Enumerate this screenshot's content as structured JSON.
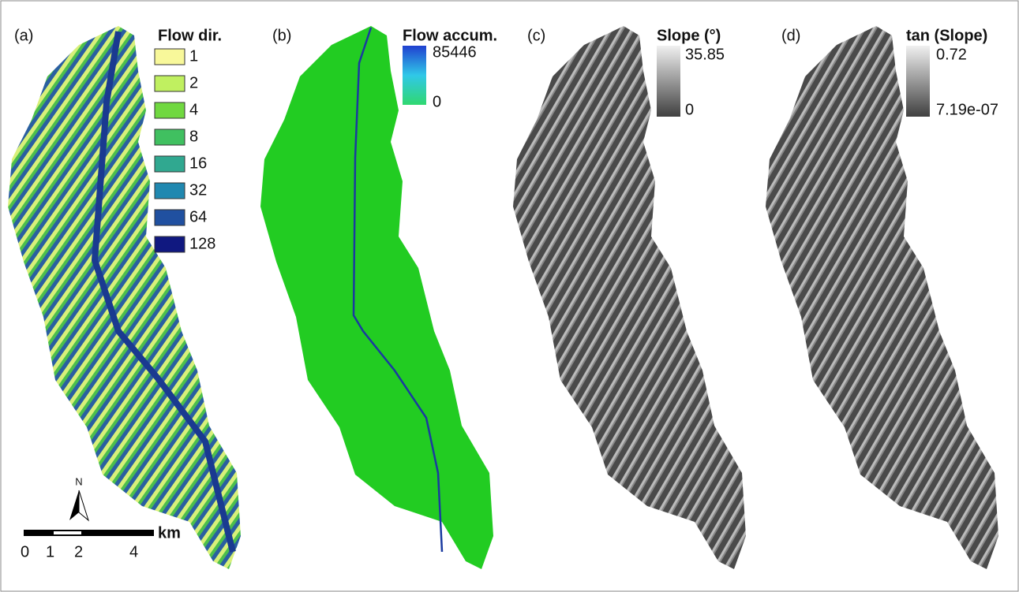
{
  "panels": [
    {
      "label": "(a)",
      "legend_title": "Flow dir.",
      "legend_items": [
        "1",
        "2",
        "4",
        "8",
        "16",
        "32",
        "64",
        "128"
      ]
    },
    {
      "label": "(b)",
      "legend_title": "Flow accum.",
      "legend_max": "85446",
      "legend_min": "0"
    },
    {
      "label": "(c)",
      "legend_title": "Slope (°)",
      "legend_max": "35.85",
      "legend_min": "0"
    },
    {
      "label": "(d)",
      "legend_title": "tan (Slope)",
      "legend_max": "0.72",
      "legend_min": "7.19e-07"
    }
  ],
  "scale_bar": {
    "labels": [
      "0",
      "1",
      "2",
      "4"
    ],
    "unit": "km"
  },
  "north_arrow": "N"
}
